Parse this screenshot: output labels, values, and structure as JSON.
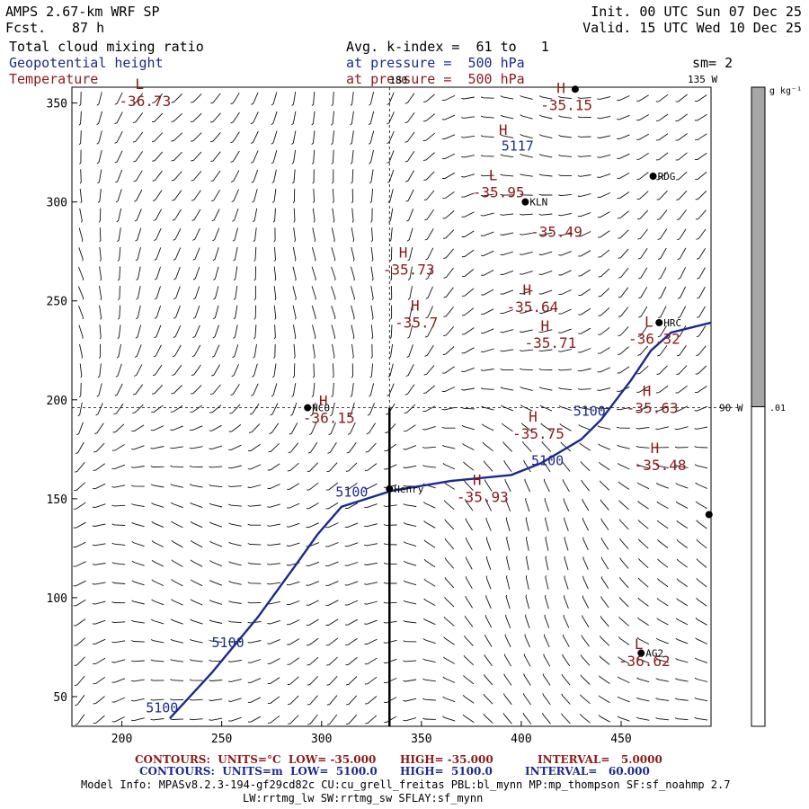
{
  "header": {
    "model": "AMPS 2.67-km WRF SP",
    "fcst_label": "Fcst.",
    "fcst_value": "87 h",
    "init": "Init. 00 UTC Sun 07 Dec 25",
    "valid": "Valid. 15 UTC Wed 10 Dec 25",
    "field1": "Total cloud mixing ratio",
    "field2": "Geopotential height",
    "field3": "Temperature",
    "avg": "Avg. k-index =  61 to   1",
    "pres1": "at pressure =  500 hPa",
    "pres2": "at pressure =  500 hPa",
    "sm": "sm= 2"
  },
  "colorbar": {
    "unit": "g kg⁻¹",
    "label": ".01",
    "fill_fraction": 0.5
  },
  "map": {
    "x_ticks": [
      200,
      250,
      300,
      350,
      400,
      450
    ],
    "y_ticks": [
      50,
      100,
      150,
      200,
      250,
      300,
      350
    ],
    "xlim": [
      175,
      495
    ],
    "ylim": [
      35,
      358
    ],
    "lon_labels": [
      {
        "text": "180",
        "x": 334,
        "y": 357
      },
      {
        "text": "135 W",
        "x": 485,
        "y": 357
      },
      {
        "text": "90 W",
        "x": 500,
        "y": 196
      }
    ],
    "crosshair_x": 334,
    "crosshair_y": 196,
    "stations": [
      {
        "name": "RDG",
        "x": 466,
        "y": 313
      },
      {
        "name": "KLN",
        "x": 402,
        "y": 300
      },
      {
        "name": "HRC",
        "x": 469,
        "y": 239
      },
      {
        "name": "NCO",
        "x": 293,
        "y": 196
      },
      {
        "name": "Henry",
        "x": 334,
        "y": 155
      },
      {
        "name": "AG2",
        "x": 460,
        "y": 72
      },
      {
        "name": "",
        "x": 427,
        "y": 357
      },
      {
        "name": "",
        "x": 494,
        "y": 142
      }
    ],
    "height_contour": {
      "value": "5100",
      "points": [
        [
          224,
          39
        ],
        [
          245,
          62
        ],
        [
          268,
          90
        ],
        [
          286,
          115
        ],
        [
          298,
          132
        ],
        [
          310,
          146
        ],
        [
          335,
          154
        ],
        [
          365,
          159
        ],
        [
          395,
          162
        ],
        [
          410,
          168
        ],
        [
          430,
          180
        ],
        [
          440,
          190
        ],
        [
          455,
          210
        ],
        [
          465,
          225
        ],
        [
          475,
          234
        ],
        [
          495,
          239
        ]
      ],
      "labels": [
        {
          "text": "5100",
          "x": 212,
          "y": 42
        },
        {
          "text": "5100",
          "x": 245,
          "y": 75
        },
        {
          "text": "5100",
          "x": 307,
          "y": 151
        },
        {
          "text": "5100",
          "x": 405,
          "y": 167
        },
        {
          "text": "5100",
          "x": 426,
          "y": 192
        },
        {
          "text": "5117",
          "x": 390,
          "y": 326
        }
      ]
    },
    "temp_centers": [
      {
        "letter": "L",
        "value": "-36.73",
        "x": 204,
        "y": 357
      },
      {
        "letter": "H",
        "value": "-35.15",
        "x": 415,
        "y": 355
      },
      {
        "letter": "L",
        "value": "-35.95",
        "x": 381,
        "y": 311
      },
      {
        "letter": "",
        "value": "-35.49",
        "x": 410,
        "y": 291
      },
      {
        "letter": "H",
        "value": "-35.73",
        "x": 336,
        "y": 272
      },
      {
        "letter": "H",
        "value": "-35.64",
        "x": 398,
        "y": 253
      },
      {
        "letter": "H",
        "value": "-35.7",
        "x": 342,
        "y": 245
      },
      {
        "letter": "H",
        "value": "-35.71",
        "x": 407,
        "y": 235
      },
      {
        "letter": "L",
        "value": "-36.32",
        "x": 459,
        "y": 237
      },
      {
        "letter": "H",
        "value": "-35.63",
        "x": 458,
        "y": 202
      },
      {
        "letter": "H",
        "value": "-36.15",
        "x": 296,
        "y": 197
      },
      {
        "letter": "H",
        "value": "-35.75",
        "x": 401,
        "y": 189
      },
      {
        "letter": "H",
        "value": "-35.48",
        "x": 462,
        "y": 173
      },
      {
        "letter": "H",
        "value": "-35.93",
        "x": 373,
        "y": 157
      },
      {
        "letter": "L",
        "value": "-36.62",
        "x": 454,
        "y": 74
      },
      {
        "letter": "H",
        "value": "",
        "x": 386,
        "y": 334
      }
    ]
  },
  "footer": {
    "t_contours": "CONTOURS:  UNITS=°C  LOW= -35.000",
    "t_high": "HIGH= -35.000",
    "t_interval": "INTERVAL=   5.0000",
    "z_contours": "CONTOURS:  UNITS=m  LOW=  5100.0",
    "z_high": "HIGH=  5100.0",
    "z_interval": "INTERVAL=   60.000",
    "model_info": "Model Info: MPASv8.2.3-194-gf29cd82c CU:cu_grell_freitas PBL:bl_mynn MP:mp_thompson SF:sf_noahmp 2.7",
    "model_info2": "LW:rrtmg_lw SW:rrtmg_sw SFLAY:sf_mynn"
  }
}
